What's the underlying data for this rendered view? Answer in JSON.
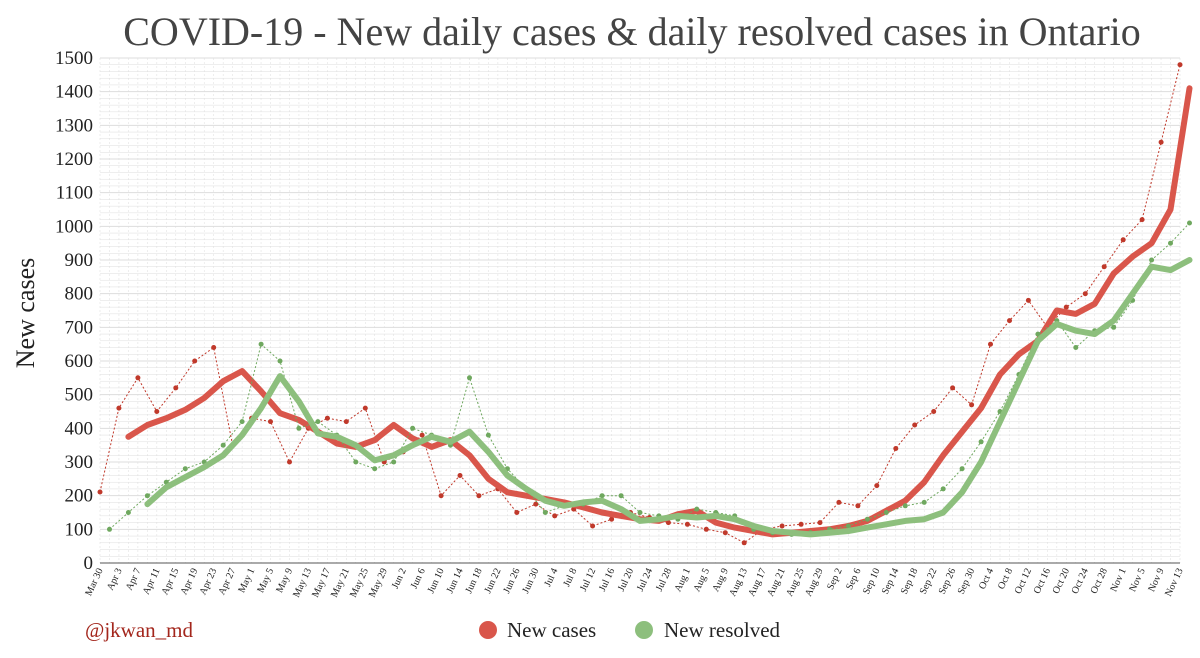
{
  "chart_data": {
    "type": "line",
    "title": "COVID-19 - New daily cases & daily resolved cases in Ontario",
    "xlabel": "",
    "ylabel": "New cases",
    "ylim": [
      0,
      1500
    ],
    "yticks": [
      0,
      100,
      200,
      300,
      400,
      500,
      600,
      700,
      800,
      900,
      1000,
      1100,
      1200,
      1300,
      1400,
      1500
    ],
    "grid": true,
    "x_start": "Mar 30",
    "x_end": "Nov 13",
    "x_tick_labels": [
      "Mar 30",
      "Apr 3",
      "Apr 7",
      "Apr 11",
      "Apr 15",
      "Apr 19",
      "Apr 23",
      "Apr 27",
      "May 1",
      "May 5",
      "May 9",
      "May 13",
      "May 17",
      "May 21",
      "May 25",
      "May 29",
      "Jun 2",
      "Jun 6",
      "Jun 10",
      "Jun 14",
      "Jun 18",
      "Jun 22",
      "Jun 26",
      "Jun 30",
      "Jul 4",
      "Jul 8",
      "Jul 12",
      "Jul 16",
      "Jul 20",
      "Jul 24",
      "Jul 28",
      "Aug 1",
      "Aug 5",
      "Aug 9",
      "Aug 13",
      "Aug 17",
      "Aug 21",
      "Aug 25",
      "Aug 29",
      "Sep 2",
      "Sep 6",
      "Sep 10",
      "Sep 14",
      "Sep 18",
      "Sep 22",
      "Sep 26",
      "Sep 30",
      "Oct 4",
      "Oct 8",
      "Oct 12",
      "Oct 16",
      "Oct 20",
      "Oct 24",
      "Oct 28",
      "Nov 1",
      "Nov 5",
      "Nov 9",
      "Nov 13"
    ],
    "legend_position": "bottom-center",
    "series": [
      {
        "name": "New cases",
        "color": "#d9564b",
        "daily_color": "#c0392b",
        "daily_days": [
          0,
          4,
          8,
          12,
          16,
          20,
          24,
          28,
          32,
          36,
          40,
          44,
          48,
          52,
          56,
          60,
          64,
          68,
          72,
          76,
          80,
          84,
          88,
          92,
          96,
          100,
          104,
          108,
          112,
          116,
          120,
          124,
          128,
          132,
          136,
          140,
          144,
          148,
          152,
          156,
          160,
          164,
          168,
          172,
          176,
          180,
          184,
          188,
          192,
          196,
          200,
          204,
          208,
          212,
          216,
          220,
          224,
          228
        ],
        "daily_values": [
          211,
          460,
          550,
          450,
          520,
          600,
          640,
          350,
          430,
          420,
          300,
          400,
          430,
          420,
          460,
          300,
          330,
          380,
          200,
          260,
          200,
          220,
          150,
          175,
          140,
          160,
          110,
          130,
          150,
          135,
          120,
          115,
          100,
          90,
          60,
          100,
          110,
          115,
          120,
          180,
          170,
          230,
          340,
          410,
          450,
          520,
          470,
          650,
          720,
          780,
          700,
          760,
          800,
          880,
          960,
          1020,
          1250,
          1480
        ],
        "smooth_days": [
          6,
          10,
          14,
          18,
          22,
          26,
          30,
          34,
          38,
          42,
          46,
          50,
          54,
          58,
          62,
          66,
          70,
          74,
          78,
          82,
          86,
          90,
          94,
          98,
          102,
          106,
          110,
          114,
          118,
          122,
          126,
          130,
          134,
          138,
          142,
          146,
          150,
          154,
          158,
          162,
          166,
          170,
          174,
          178,
          182,
          186,
          190,
          194,
          198,
          202,
          206,
          210,
          214,
          218,
          222,
          226,
          230
        ],
        "smooth_values": [
          375,
          410,
          430,
          455,
          490,
          540,
          570,
          510,
          445,
          425,
          390,
          355,
          345,
          365,
          410,
          370,
          345,
          365,
          320,
          250,
          210,
          200,
          190,
          180,
          165,
          150,
          140,
          130,
          125,
          145,
          155,
          120,
          105,
          95,
          85,
          90,
          95,
          100,
          110,
          125,
          155,
          185,
          240,
          320,
          390,
          460,
          560,
          620,
          660,
          750,
          740,
          770,
          860,
          910,
          950,
          1050,
          1410
        ]
      },
      {
        "name": "New resolved",
        "color": "#8dbf7d",
        "daily_color": "#6fa85f",
        "daily_days": [
          2,
          6,
          10,
          14,
          18,
          22,
          26,
          30,
          34,
          38,
          42,
          46,
          50,
          54,
          58,
          62,
          66,
          70,
          74,
          78,
          82,
          86,
          90,
          94,
          98,
          102,
          106,
          110,
          114,
          118,
          122,
          126,
          130,
          134,
          138,
          142,
          146,
          150,
          154,
          158,
          162,
          166,
          170,
          174,
          178,
          182,
          186,
          190,
          194,
          198,
          202,
          206,
          210,
          214,
          218,
          222,
          226,
          230
        ],
        "daily_values": [
          100,
          150,
          200,
          240,
          280,
          300,
          350,
          420,
          650,
          600,
          400,
          420,
          380,
          300,
          280,
          300,
          400,
          380,
          350,
          550,
          380,
          280,
          220,
          150,
          170,
          175,
          200,
          200,
          150,
          140,
          130,
          160,
          150,
          140,
          100,
          90,
          85,
          90,
          100,
          110,
          130,
          150,
          170,
          180,
          220,
          280,
          360,
          450,
          560,
          680,
          720,
          640,
          690,
          700,
          780,
          900,
          950,
          1010
        ],
        "smooth_days": [
          10,
          14,
          18,
          22,
          26,
          30,
          34,
          38,
          42,
          46,
          50,
          54,
          58,
          62,
          66,
          70,
          74,
          78,
          82,
          86,
          90,
          94,
          98,
          102,
          106,
          110,
          114,
          118,
          122,
          126,
          130,
          134,
          138,
          142,
          146,
          150,
          154,
          158,
          162,
          166,
          170,
          174,
          178,
          182,
          186,
          190,
          194,
          198,
          202,
          206,
          210,
          214,
          218,
          222,
          226,
          230
        ],
        "smooth_values": [
          175,
          225,
          255,
          285,
          320,
          380,
          460,
          555,
          480,
          385,
          375,
          350,
          305,
          320,
          350,
          375,
          360,
          390,
          330,
          260,
          220,
          185,
          170,
          180,
          185,
          160,
          125,
          130,
          140,
          135,
          140,
          130,
          110,
          95,
          90,
          85,
          90,
          95,
          105,
          115,
          125,
          130,
          150,
          210,
          300,
          420,
          540,
          660,
          710,
          690,
          680,
          720,
          800,
          880,
          870,
          900
        ]
      }
    ]
  },
  "handle": "@jkwan_md",
  "colors": {
    "title": "#444444",
    "handle": "#a3261c",
    "grid": "#dddddd",
    "axis": "#555555"
  }
}
